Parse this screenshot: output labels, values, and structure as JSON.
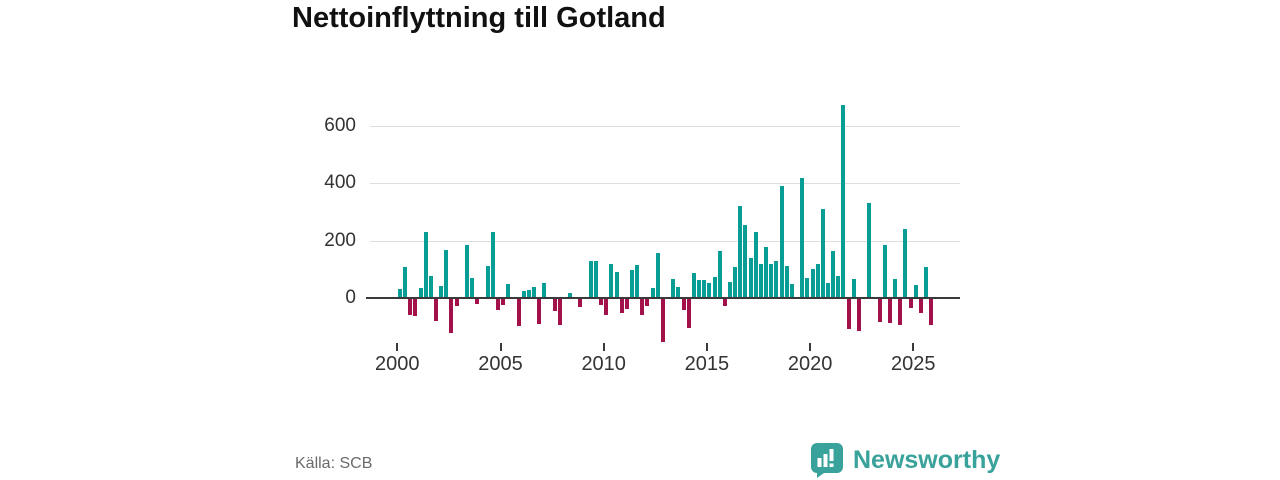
{
  "title": "Nettoinflyttning till Gotland",
  "source": {
    "label": "Källa: SCB"
  },
  "branding": {
    "name": "Newsworthy",
    "color": "#39a29a"
  },
  "chart_data": {
    "type": "bar",
    "title": "Nettoinflyttning till Gotland",
    "frequency": "quarterly",
    "start_year": 2000,
    "start_quarter": 1,
    "values": [
      33,
      108,
      -54,
      -60,
      34,
      231,
      76,
      -77,
      43,
      168,
      -117,
      -25,
      0,
      183,
      70,
      -18,
      0,
      110,
      230,
      -38,
      -20,
      50,
      0,
      -94,
      26,
      27,
      38,
      -88,
      52,
      0,
      -41,
      -91,
      0,
      18,
      0,
      -29,
      0,
      129,
      129,
      -20,
      -57,
      119,
      92,
      -50,
      -35,
      98,
      115,
      -57,
      -26,
      35,
      155,
      -150,
      0,
      67,
      40,
      -39,
      -100,
      87,
      64,
      62,
      52,
      73,
      163,
      -23,
      54,
      108,
      320,
      254,
      138,
      231,
      120,
      178,
      117,
      128,
      390,
      111,
      47,
      0,
      418,
      70,
      100,
      119,
      310,
      52,
      163,
      75,
      670,
      -105,
      66,
      -112,
      0,
      332,
      0,
      -79,
      186,
      -82,
      66,
      -91,
      241,
      -33,
      45,
      -50,
      107,
      -91
    ],
    "y_ticks": [
      0,
      200,
      400,
      600
    ],
    "x_tick_labels": [
      "2000",
      "2005",
      "2010",
      "2015",
      "2020",
      "2025"
    ],
    "ylim": [
      -160,
      700
    ],
    "grid": "horizontal",
    "legend": "none",
    "positive_color": "#089e96",
    "negative_color": "#a3114b"
  }
}
